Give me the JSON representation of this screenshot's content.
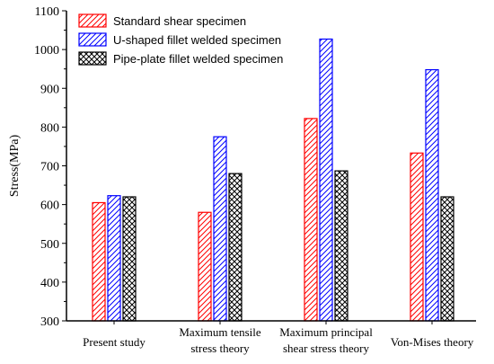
{
  "chart_data": {
    "type": "bar",
    "title": "",
    "xlabel": "",
    "ylabel": "Stress(MPa)",
    "ylim": [
      300,
      1100
    ],
    "yticks": [
      300,
      400,
      500,
      600,
      700,
      800,
      900,
      1000,
      1100
    ],
    "categories": [
      [
        "Present study"
      ],
      [
        "Maximum tensile",
        "stress theory"
      ],
      [
        "Maximum principal",
        "shear stress theory"
      ],
      [
        "Von-Mises theory"
      ]
    ],
    "series": [
      {
        "name": "Standard shear specimen",
        "values": [
          605,
          580,
          822,
          733
        ],
        "color": "#ff0000",
        "pattern": "diagonal-left"
      },
      {
        "name": "U-shaped fillet welded specimen",
        "values": [
          623,
          775,
          1027,
          948
        ],
        "color": "#0000ff",
        "pattern": "diagonal-right"
      },
      {
        "name": "Pipe-plate fillet welded specimen",
        "values": [
          620,
          680,
          687,
          620
        ],
        "color": "#000000",
        "pattern": "crosshatch"
      }
    ],
    "legend": "top-left",
    "grid": false
  }
}
